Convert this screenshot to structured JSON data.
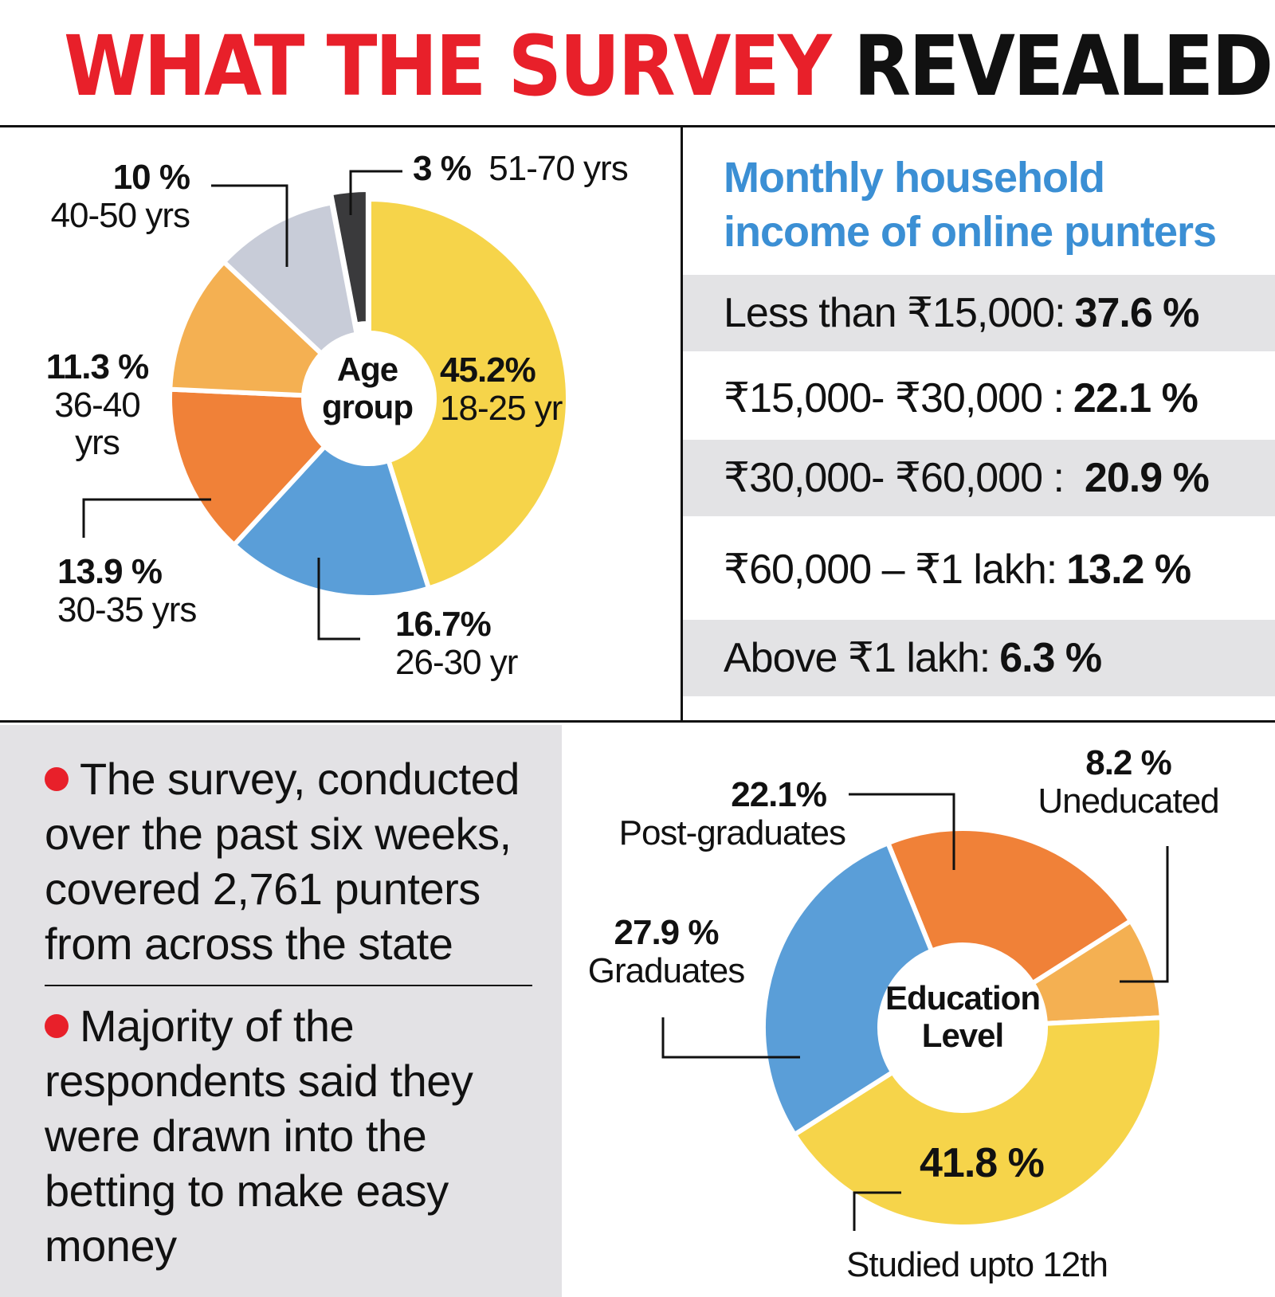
{
  "headline": {
    "red": "WHAT THE SURVEY",
    "black": "REVEALED"
  },
  "colors": {
    "yellow": "#f6d44a",
    "blue": "#5a9ed8",
    "orange": "#f08138",
    "light_orange": "#f4b052",
    "gray": "#c8ccd8",
    "dark": "#3a3a3c",
    "red": "#e8202a",
    "title_blue": "#3b8fd4"
  },
  "chart_data": [
    {
      "type": "pie",
      "title": "Age group",
      "slices": [
        {
          "category": "18-25 yr",
          "value": 45.2,
          "label": "45.2%"
        },
        {
          "category": "26-30 yr",
          "value": 16.7,
          "label": "16.7%"
        },
        {
          "category": "30-35 yrs",
          "value": 13.9,
          "label": "13.9 %"
        },
        {
          "category": "36-40 yrs",
          "value": 11.3,
          "label": "11.3 %"
        },
        {
          "category": "40-50 yrs",
          "value": 10,
          "label": "10 %"
        },
        {
          "category": "51-70 yrs",
          "value": 3,
          "label": "3 %"
        }
      ]
    },
    {
      "type": "pie",
      "title": "Education Level",
      "slices": [
        {
          "category": "Post-graduates",
          "value": 22.1,
          "label": "22.1%"
        },
        {
          "category": "Uneducated",
          "value": 8.2,
          "label": "8.2 %"
        },
        {
          "category": "Studied upto 12th",
          "value": 41.8,
          "label": "41.8 %"
        },
        {
          "category": "Graduates",
          "value": 27.9,
          "label": "27.9 %"
        }
      ]
    },
    {
      "type": "table",
      "title": "Monthly household income of online punters",
      "rows": [
        {
          "label": "Less than ₹15,000:",
          "value": "37.6 %"
        },
        {
          "label": "₹15,000- ₹30,000 :",
          "value": "22.1 %"
        },
        {
          "label": "₹30,000- ₹60,000 :",
          "value": "20.9 %"
        },
        {
          "label": "₹60,000 – ₹1 lakh:",
          "value": "13.2 %"
        },
        {
          "label": "Above ₹1 lakh:",
          "value": "6.3 %"
        }
      ]
    }
  ],
  "age": {
    "center_line1": "Age",
    "center_line2": "group",
    "s1825": {
      "pct": "45.2%",
      "cat": "18-25 yr"
    },
    "s2630": {
      "pct": "16.7%",
      "cat": "26-30 yr"
    },
    "s3035": {
      "pct": "13.9 %",
      "cat": "30-35 yrs"
    },
    "s3640": {
      "pct": "11.3 %",
      "cat1": "36-40",
      "cat2": "yrs"
    },
    "s4050": {
      "pct": "10 %",
      "cat": "40-50 yrs"
    },
    "s5170": {
      "pct": "3 %",
      "cat": "51-70 yrs"
    }
  },
  "income": {
    "title_line1": "Monthly household",
    "title_line2": "income of online punters",
    "rows": [
      {
        "label": "Less than ₹15,000:",
        "value": "37.6 %"
      },
      {
        "label": "₹15,000- ₹30,000 :",
        "value": "22.1 %"
      },
      {
        "label": "₹30,000- ₹60,000 :",
        "value": "20.9 %"
      },
      {
        "label": "₹60,000 – ₹1 lakh:",
        "value": "13.2 %"
      },
      {
        "label": "Above ₹1 lakh:",
        "value": "6.3 %"
      }
    ]
  },
  "notes": {
    "n1": "The survey, conducted over the past six weeks, covered 2,761 punters from across the state",
    "n2": "Majority of the respondents said they were drawn into the betting to make easy money"
  },
  "edu": {
    "center_line1": "Education",
    "center_line2": "Level",
    "post": {
      "pct": "22.1%",
      "cat": "Post-graduates"
    },
    "unedu": {
      "pct": "8.2 %",
      "cat": "Uneducated"
    },
    "grad": {
      "pct": "27.9 %",
      "cat": "Graduates"
    },
    "twelfth": {
      "pct": "41.8 %",
      "cat": "Studied upto 12th"
    }
  }
}
